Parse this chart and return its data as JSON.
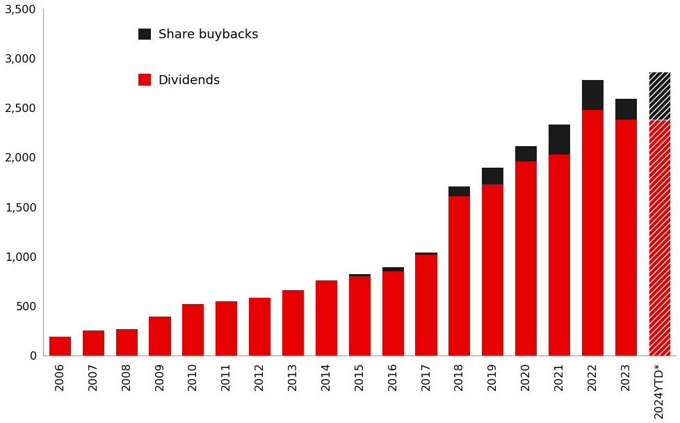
{
  "years": [
    "2006",
    "2007",
    "2008",
    "2009",
    "2010",
    "2011",
    "2012",
    "2013",
    "2014",
    "2015",
    "2016",
    "2017",
    "2018",
    "2019",
    "2020",
    "2021",
    "2022",
    "2023",
    "2024YTD*"
  ],
  "dividends": [
    190,
    250,
    270,
    390,
    520,
    545,
    580,
    660,
    760,
    800,
    850,
    1020,
    1610,
    1730,
    1960,
    2030,
    2480,
    2380,
    2380
  ],
  "buybacks": [
    0,
    0,
    0,
    0,
    0,
    0,
    0,
    0,
    0,
    20,
    40,
    20,
    100,
    170,
    155,
    300,
    305,
    215,
    490
  ],
  "ytd_index": 18,
  "bar_color_dividends": "#e60000",
  "bar_color_buybacks": "#1a1a1a",
  "ylim": [
    0,
    3500
  ],
  "yticks": [
    0,
    500,
    1000,
    1500,
    2000,
    2500,
    3000,
    3500
  ],
  "ytick_labels": [
    "0",
    "500",
    "1,000",
    "1,500",
    "2,000",
    "2,500",
    "3,000",
    "3,500"
  ],
  "legend_share_buybacks": "Share buybacks",
  "legend_dividends": "Dividends",
  "background_color": "#ffffff",
  "tick_fontsize": 11.5,
  "legend_fontsize": 13
}
